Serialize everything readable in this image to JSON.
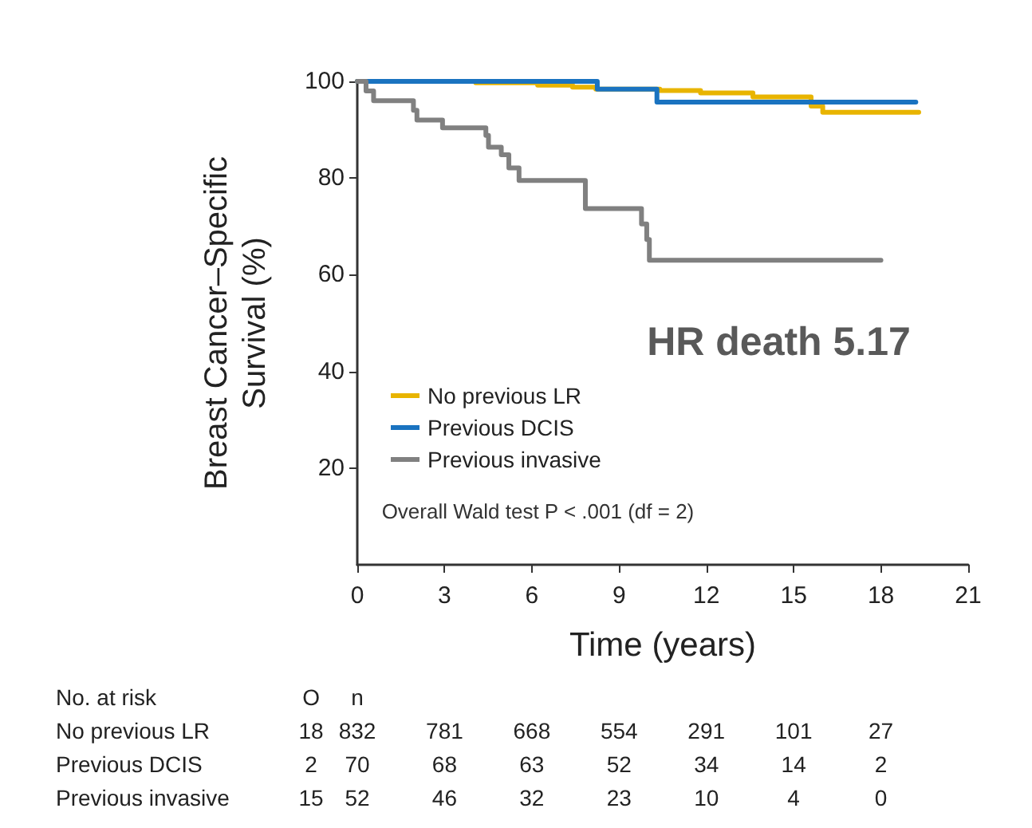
{
  "chart_data": {
    "type": "step",
    "xlabel": "Time (years)",
    "ylabel": "Breast Cancer–Specific Survival (%)",
    "xlim": [
      0,
      21
    ],
    "xticks": [
      0,
      3,
      6,
      9,
      12,
      15,
      18,
      21
    ],
    "ylim": [
      0,
      100
    ],
    "yticks": [
      20,
      40,
      60,
      80,
      100
    ],
    "grid": false,
    "legend": "left",
    "marker": "none",
    "line_style": "solid",
    "series": [
      {
        "name": "No previous LR",
        "color": "#e8b400",
        "x": [
          0,
          4.07,
          6.2,
          7.4,
          8.2,
          10.4,
          11.8,
          13.6,
          15.6,
          16.0,
          19.3
        ],
        "values": [
          100,
          99.7,
          99.2,
          98.8,
          98.4,
          98.1,
          97.6,
          96.8,
          94.9,
          93.6,
          93.6
        ]
      },
      {
        "name": "Previous DCIS",
        "color": "#1a73c0",
        "x": [
          0,
          8.25,
          10.3,
          19.2
        ],
        "values": [
          100,
          98.4,
          95.7,
          95.7
        ]
      },
      {
        "name": "Previous invasive",
        "color": "#808080",
        "x": [
          0,
          0.3,
          0.56,
          1.93,
          2.05,
          2.93,
          4.42,
          4.51,
          4.95,
          5.21,
          5.56,
          7.84,
          9.77,
          9.95,
          10.04,
          18
        ],
        "values": [
          100,
          98,
          96,
          94,
          92,
          90.4,
          88.8,
          86.4,
          84.8,
          82.1,
          79.5,
          73.7,
          70.5,
          67.3,
          63,
          63
        ]
      }
    ],
    "annotations": [
      "HR death 5.17",
      "Overall Wald test P < .001 (df = 2)",
      "No. at risk O n",
      "No previous LR 18 832 781 668 554 291 101 27",
      "Previous DCIS 2 70 68 63 52 34 14 2",
      "Previous invasive 15 52 46 32 23 10 4 0"
    ]
  }
}
